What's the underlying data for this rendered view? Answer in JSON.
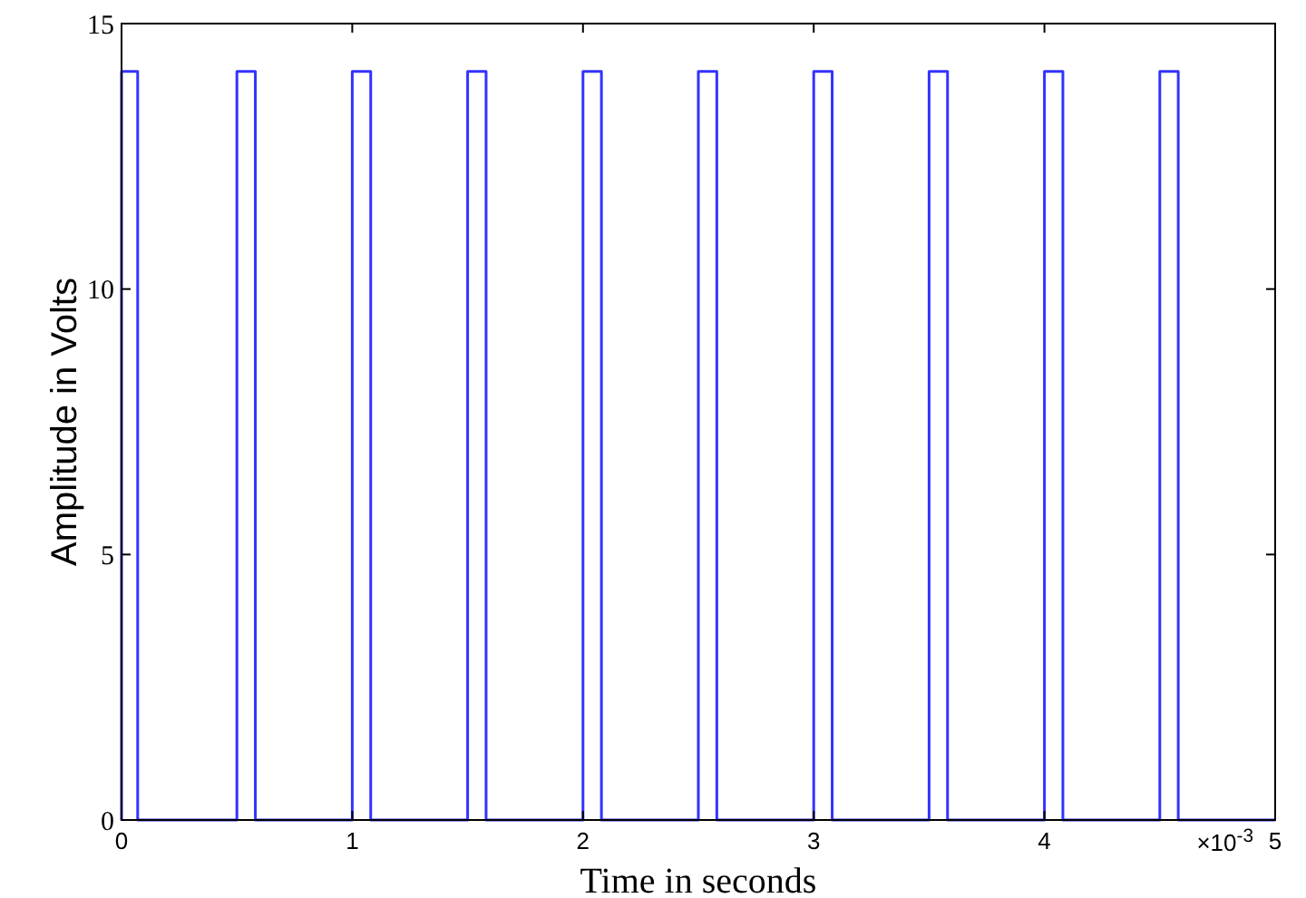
{
  "chart_data": {
    "type": "line",
    "xlabel": "Time in seconds",
    "ylabel": "Amplitude in Volts",
    "x": [
      0,
      0,
      0.07,
      0.07,
      0.5,
      0.5,
      0.58,
      0.58,
      1,
      1,
      1.08,
      1.08,
      1.5,
      1.5,
      1.58,
      1.58,
      2,
      2,
      2.08,
      2.08,
      2.5,
      2.5,
      2.58,
      2.58,
      3,
      3,
      3.08,
      3.08,
      3.5,
      3.5,
      3.58,
      3.58,
      4,
      4,
      4.08,
      4.08,
      4.5,
      4.5,
      4.58,
      4.58,
      5
    ],
    "series": [
      {
        "color": "#3333ff",
        "values": [
          0,
          14.1,
          14.1,
          0,
          0,
          14.1,
          14.1,
          0,
          0,
          14.1,
          14.1,
          0,
          0,
          14.1,
          14.1,
          0,
          0,
          14.1,
          14.1,
          0,
          0,
          14.1,
          14.1,
          0,
          0,
          14.1,
          14.1,
          0,
          0,
          14.1,
          14.1,
          0,
          0,
          14.1,
          14.1,
          0,
          0,
          14.1,
          14.1,
          0,
          0
        ]
      }
    ],
    "xlim": [
      0,
      5
    ],
    "xticks": [
      0,
      1,
      2,
      3,
      4,
      5
    ],
    "ylim": [
      0,
      15
    ],
    "yticks": [
      0,
      5,
      10,
      15
    ],
    "grid": false,
    "marker": "none",
    "line_style": "solid",
    "annotations": [
      "×10$^{-3}$"
    ]
  }
}
